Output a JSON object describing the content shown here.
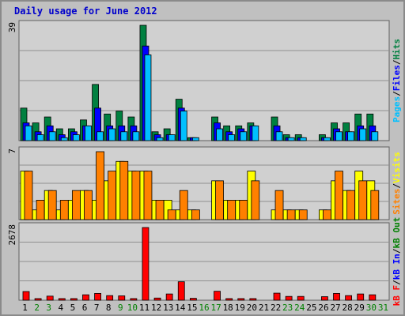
{
  "title": "Daily usage for June 2012",
  "colors": {
    "hits": "#008040",
    "files": "#0000ff",
    "pages": "#00c0ff",
    "visits": "#ffff00",
    "sites": "#ff8000",
    "kbin": "#0000ff",
    "kbout": "#008000",
    "kbf": "#ff0000",
    "weekday": "#000000",
    "weekend": "#008000",
    "background": "#c0c0c0",
    "panel": "#d0d0d0"
  },
  "right_labels": {
    "top": [
      {
        "text": "Pages",
        "color": "#00c0ff"
      },
      {
        "text": "/",
        "color": "#000000"
      },
      {
        "text": "Files",
        "color": "#0000ff"
      },
      {
        "text": "/",
        "color": "#000000"
      },
      {
        "text": "Hits",
        "color": "#008040"
      }
    ],
    "mid": [
      {
        "text": "Sites",
        "color": "#ff8000"
      },
      {
        "text": "/",
        "color": "#000000"
      },
      {
        "text": "Visits",
        "color": "#ffff00"
      }
    ],
    "bot": [
      {
        "text": "kB F",
        "color": "#ff0000"
      },
      {
        "text": "/",
        "color": "#000000"
      },
      {
        "text": "kB In",
        "color": "#0000ff"
      },
      {
        "text": "/",
        "color": "#000000"
      },
      {
        "text": "kB Out",
        "color": "#008000"
      }
    ]
  },
  "chart_data": {
    "type": "bar",
    "title": "Daily usage for June 2012",
    "categories": [
      "1",
      "2",
      "3",
      "4",
      "5",
      "6",
      "7",
      "8",
      "9",
      "10",
      "11",
      "12",
      "13",
      "14",
      "15",
      "16",
      "17",
      "18",
      "19",
      "20",
      "21",
      "22",
      "23",
      "24",
      "25",
      "26",
      "27",
      "28",
      "29",
      "30",
      "31"
    ],
    "weekend_days": [
      "2",
      "3",
      "9",
      "10",
      "16",
      "17",
      "23",
      "24",
      "30",
      "31"
    ],
    "panels": [
      {
        "name": "top",
        "ymax_label": "39",
        "ylim": [
          0,
          39
        ],
        "series": [
          {
            "name": "Hits",
            "values": [
              11,
              6,
              8,
              4,
              4,
              7,
              19,
              9,
              10,
              8,
              39,
              3,
              4,
              14,
              1,
              0,
              8,
              5,
              5,
              6,
              0,
              8,
              2,
              2,
              0,
              2,
              6,
              6,
              9,
              9,
              0
            ]
          },
          {
            "name": "Files",
            "values": [
              6,
              3,
              5,
              2,
              3,
              5,
              11,
              5,
              5,
              5,
              32,
              2,
              2,
              11,
              1,
              0,
              6,
              3,
              4,
              5,
              0,
              5,
              1,
              1,
              0,
              1,
              4,
              3,
              5,
              5,
              0
            ]
          },
          {
            "name": "Pages",
            "values": [
              5,
              2,
              3,
              1,
              2,
              5,
              3,
              4,
              3,
              3,
              29,
              1,
              2,
              10,
              1,
              0,
              4,
              2,
              3,
              5,
              0,
              3,
              1,
              1,
              0,
              1,
              3,
              3,
              4,
              3,
              0
            ]
          }
        ]
      },
      {
        "name": "mid",
        "ymax_label": "7",
        "ylim": [
          0,
          7
        ],
        "series": [
          {
            "name": "Visits",
            "values": [
              5,
              1,
              3,
              1,
              2,
              3,
              2,
              4,
              6,
              5,
              5,
              2,
              2,
              1,
              1,
              0,
              4,
              2,
              2,
              5,
              0,
              1,
              1,
              1,
              0,
              1,
              4,
              3,
              5,
              4,
              0
            ]
          },
          {
            "name": "Sites",
            "values": [
              5,
              2,
              3,
              2,
              3,
              3,
              7,
              5,
              6,
              5,
              5,
              2,
              1,
              3,
              1,
              0,
              4,
              2,
              2,
              4,
              0,
              3,
              1,
              1,
              0,
              1,
              5,
              3,
              4,
              3,
              0
            ]
          }
        ]
      },
      {
        "name": "bot",
        "ymax_label": "2678",
        "ylim": [
          0,
          2678
        ],
        "series": [
          {
            "name": "kB F",
            "values": [
              320,
              60,
              150,
              60,
              60,
              200,
              250,
              170,
              160,
              60,
              2678,
              80,
              230,
              680,
              70,
              0,
              330,
              60,
              60,
              60,
              0,
              260,
              140,
              140,
              0,
              130,
              250,
              170,
              230,
              200,
              0
            ]
          }
        ]
      }
    ]
  }
}
